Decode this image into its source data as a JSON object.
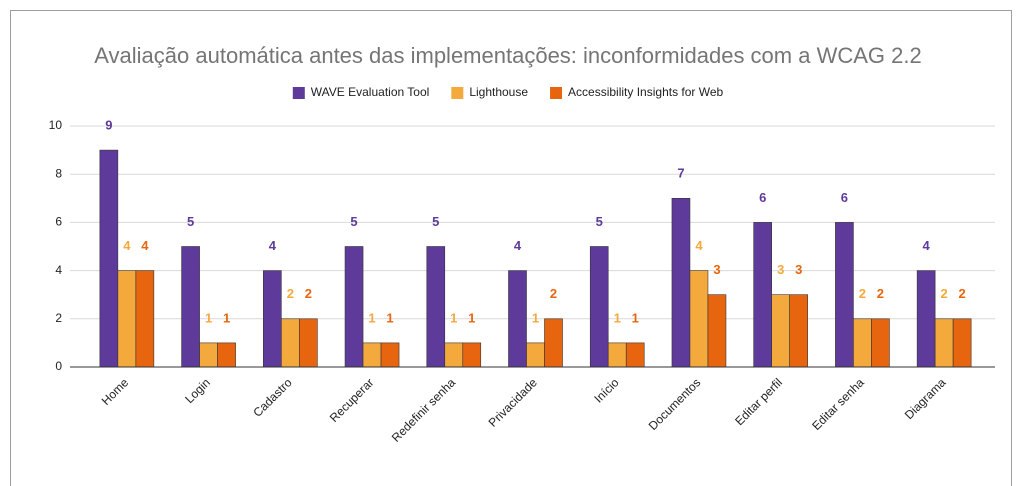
{
  "chart_data": {
    "type": "bar",
    "title": "Avaliação automática antes das implementações: inconformidades com a WCAG 2.2",
    "categories": [
      "Home",
      "Login",
      "Cadastro",
      "Recuperar",
      "Redefinir senha",
      "Privacidade",
      "Início",
      "Documentos",
      "Editar perfil",
      "Editar senha",
      "Diagrama"
    ],
    "series": [
      {
        "name": "WAVE Evaluation Tool",
        "color": "#5e3a9a",
        "values": [
          9,
          5,
          4,
          5,
          5,
          4,
          5,
          7,
          6,
          6,
          4
        ]
      },
      {
        "name": "Lighthouse",
        "color": "#f4a93c",
        "values": [
          4,
          1,
          2,
          1,
          1,
          1,
          1,
          4,
          3,
          2,
          2
        ]
      },
      {
        "name": "Accessibility Insights for Web",
        "color": "#e8650f",
        "values": [
          4,
          1,
          2,
          1,
          1,
          2,
          1,
          3,
          3,
          2,
          2
        ]
      }
    ],
    "ylim": [
      0,
      10
    ],
    "yticks": [
      0,
      2,
      4,
      6,
      8,
      10
    ],
    "grid": true,
    "legend": "top"
  }
}
